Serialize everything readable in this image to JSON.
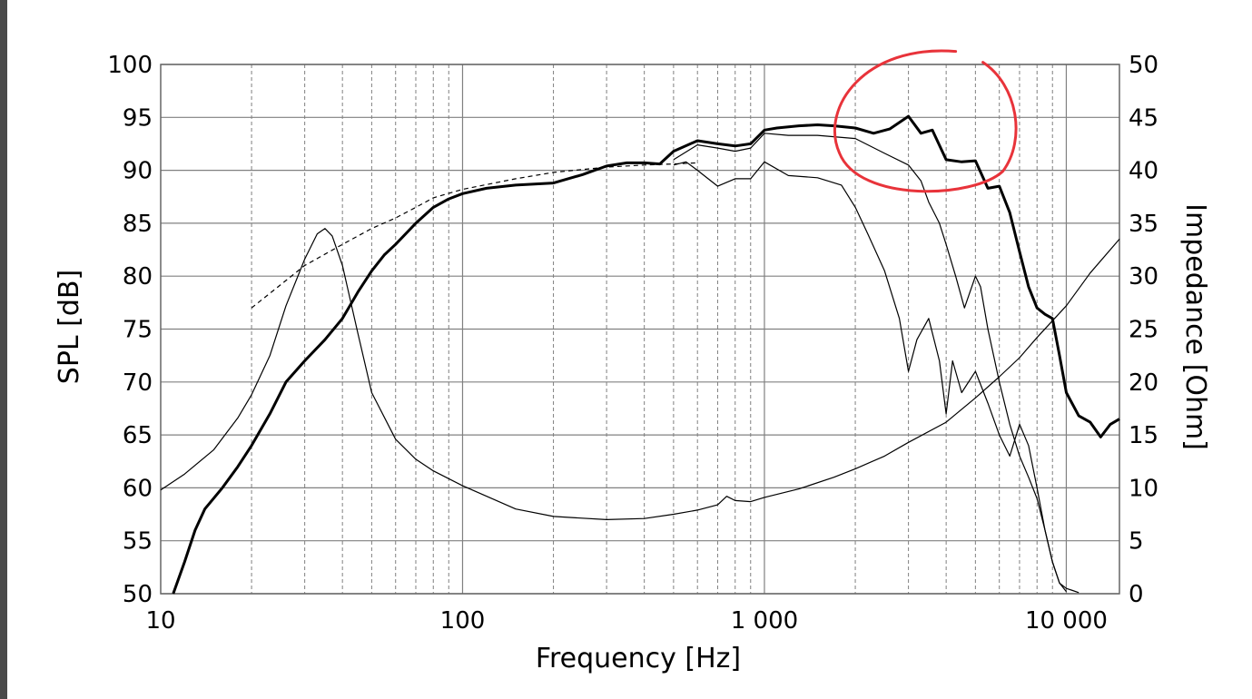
{
  "chart_data": {
    "type": "line",
    "title": "",
    "xlabel": "Frequency [Hz]",
    "ylabel": "SPL [dB]",
    "y2label": "Impedance [Ohm]",
    "xscale": "log",
    "xlim": [
      10,
      15000
    ],
    "ylim": [
      50,
      100
    ],
    "y2lim": [
      0,
      50
    ],
    "grid": true,
    "x_ticks": [
      {
        "value": 10,
        "label": "10"
      },
      {
        "value": 100,
        "label": "100"
      },
      {
        "value": 1000,
        "label": "1 000"
      },
      {
        "value": 10000,
        "label": "10 000"
      }
    ],
    "y_ticks": [
      {
        "value": 100,
        "label": "100"
      },
      {
        "value": 95,
        "label": "95"
      },
      {
        "value": 90,
        "label": "90"
      },
      {
        "value": 85,
        "label": "85"
      },
      {
        "value": 80,
        "label": "80"
      },
      {
        "value": 75,
        "label": "75"
      },
      {
        "value": 70,
        "label": "70"
      },
      {
        "value": 65,
        "label": "65"
      },
      {
        "value": 60,
        "label": "60"
      },
      {
        "value": 55,
        "label": "55"
      },
      {
        "value": 50,
        "label": "50"
      }
    ],
    "y2_ticks": [
      {
        "value": 50,
        "label": "50"
      },
      {
        "value": 45,
        "label": "45"
      },
      {
        "value": 40,
        "label": "40"
      },
      {
        "value": 35,
        "label": "35"
      },
      {
        "value": 30,
        "label": "30"
      },
      {
        "value": 25,
        "label": "25"
      },
      {
        "value": 20,
        "label": "20"
      },
      {
        "value": 15,
        "label": "15"
      },
      {
        "value": 10,
        "label": "10"
      },
      {
        "value": 5,
        "label": "5"
      },
      {
        "value": 0,
        "label": "0"
      }
    ],
    "series": [
      {
        "axis": "left",
        "stroke": "#000000",
        "width": 3,
        "dash": "",
        "points": [
          [
            11,
            50
          ],
          [
            12,
            53
          ],
          [
            13,
            56
          ],
          [
            14,
            58
          ],
          [
            16,
            60
          ],
          [
            18,
            62
          ],
          [
            20,
            64
          ],
          [
            23,
            67
          ],
          [
            26,
            70
          ],
          [
            30,
            72
          ],
          [
            35,
            74
          ],
          [
            40,
            76
          ],
          [
            45,
            78.5
          ],
          [
            50,
            80.5
          ],
          [
            55,
            82
          ],
          [
            60,
            83
          ],
          [
            70,
            85
          ],
          [
            80,
            86.5
          ],
          [
            90,
            87.3
          ],
          [
            100,
            87.8
          ],
          [
            120,
            88.3
          ],
          [
            150,
            88.6
          ],
          [
            200,
            88.8
          ],
          [
            250,
            89.6
          ],
          [
            300,
            90.4
          ],
          [
            350,
            90.7
          ],
          [
            400,
            90.7
          ],
          [
            450,
            90.6
          ],
          [
            500,
            91.8
          ],
          [
            600,
            92.8
          ],
          [
            700,
            92.5
          ],
          [
            800,
            92.3
          ],
          [
            900,
            92.5
          ],
          [
            1000,
            93.8
          ],
          [
            1100,
            94
          ],
          [
            1300,
            94.2
          ],
          [
            1500,
            94.3
          ],
          [
            1700,
            94.2
          ],
          [
            2000,
            94
          ],
          [
            2300,
            93.5
          ],
          [
            2600,
            93.9
          ],
          [
            3000,
            95.1
          ],
          [
            3300,
            93.5
          ],
          [
            3600,
            93.8
          ],
          [
            4000,
            91
          ],
          [
            4500,
            90.8
          ],
          [
            5000,
            90.9
          ],
          [
            5500,
            88.3
          ],
          [
            6000,
            88.5
          ],
          [
            6500,
            86
          ],
          [
            7000,
            82.3
          ],
          [
            7500,
            79
          ],
          [
            8000,
            77
          ],
          [
            8500,
            76.4
          ],
          [
            9000,
            76
          ],
          [
            9500,
            72.5
          ],
          [
            10000,
            69
          ],
          [
            11000,
            66.8
          ],
          [
            12000,
            66.2
          ],
          [
            13000,
            64.8
          ],
          [
            14000,
            66
          ],
          [
            15000,
            66.5
          ]
        ]
      },
      {
        "axis": "left",
        "stroke": "#000000",
        "width": 1.2,
        "dash": "",
        "points": [
          [
            500,
            91
          ],
          [
            600,
            92.4
          ],
          [
            700,
            92.1
          ],
          [
            800,
            91.8
          ],
          [
            900,
            92.1
          ],
          [
            1000,
            93.5
          ],
          [
            1200,
            93.3
          ],
          [
            1500,
            93.3
          ],
          [
            2000,
            93
          ],
          [
            2500,
            91.6
          ],
          [
            3000,
            90.5
          ],
          [
            3300,
            89
          ],
          [
            3500,
            87
          ],
          [
            3800,
            85
          ],
          [
            4000,
            83
          ],
          [
            4300,
            80
          ],
          [
            4600,
            77
          ],
          [
            5000,
            80
          ],
          [
            5200,
            79
          ],
          [
            5500,
            75
          ],
          [
            6000,
            70
          ],
          [
            6500,
            66
          ],
          [
            7000,
            63
          ],
          [
            7500,
            61
          ],
          [
            8000,
            59
          ],
          [
            8500,
            56
          ],
          [
            9000,
            53
          ],
          [
            9500,
            51
          ],
          [
            10000,
            50.5
          ],
          [
            10500,
            50.3
          ],
          [
            11000,
            50.1
          ]
        ]
      },
      {
        "axis": "left",
        "stroke": "#000000",
        "width": 1.2,
        "dash": "",
        "points": [
          [
            500,
            90.5
          ],
          [
            550,
            90.8
          ],
          [
            600,
            90
          ],
          [
            700,
            88.5
          ],
          [
            800,
            89.2
          ],
          [
            900,
            89.2
          ],
          [
            1000,
            90.8
          ],
          [
            1200,
            89.5
          ],
          [
            1500,
            89.3
          ],
          [
            1800,
            88.6
          ],
          [
            2000,
            86.5
          ],
          [
            2200,
            84
          ],
          [
            2500,
            80.5
          ],
          [
            2800,
            76
          ],
          [
            3000,
            71
          ],
          [
            3200,
            74
          ],
          [
            3500,
            76
          ],
          [
            3800,
            72
          ],
          [
            4000,
            67
          ],
          [
            4200,
            72
          ],
          [
            4500,
            69
          ],
          [
            5000,
            71
          ],
          [
            5500,
            68
          ],
          [
            6000,
            65
          ],
          [
            6500,
            63
          ],
          [
            7000,
            66
          ],
          [
            7500,
            64
          ],
          [
            8000,
            60
          ],
          [
            8500,
            56
          ],
          [
            9000,
            53
          ],
          [
            9500,
            51
          ],
          [
            10000,
            50.2
          ]
        ]
      },
      {
        "axis": "left",
        "stroke": "#000000",
        "width": 1.2,
        "dash": "5,4",
        "points": [
          [
            20,
            77
          ],
          [
            25,
            79.2
          ],
          [
            30,
            81
          ],
          [
            40,
            83
          ],
          [
            50,
            84.5
          ],
          [
            60,
            85.5
          ],
          [
            70,
            86.5
          ],
          [
            80,
            87.4
          ],
          [
            100,
            88.2
          ],
          [
            150,
            89.2
          ],
          [
            200,
            89.8
          ],
          [
            300,
            90.3
          ],
          [
            400,
            90.5
          ],
          [
            500,
            90.6
          ],
          [
            600,
            90.7
          ]
        ]
      },
      {
        "axis": "right",
        "stroke": "#000000",
        "width": 1.2,
        "dash": "",
        "points": [
          [
            10,
            9.8
          ],
          [
            12,
            11.3
          ],
          [
            15,
            13.6
          ],
          [
            18,
            16.6
          ],
          [
            20,
            18.8
          ],
          [
            23,
            22.5
          ],
          [
            26,
            27.2
          ],
          [
            30,
            31.6
          ],
          [
            33,
            34
          ],
          [
            35,
            34.5
          ],
          [
            37,
            33.8
          ],
          [
            40,
            31
          ],
          [
            45,
            24.6
          ],
          [
            50,
            19
          ],
          [
            60,
            14.6
          ],
          [
            70,
            12.7
          ],
          [
            80,
            11.6
          ],
          [
            100,
            10.2
          ],
          [
            150,
            8
          ],
          [
            200,
            7.3
          ],
          [
            300,
            7
          ],
          [
            400,
            7.1
          ],
          [
            500,
            7.5
          ],
          [
            600,
            7.9
          ],
          [
            700,
            8.4
          ],
          [
            750,
            9.2
          ],
          [
            800,
            8.8
          ],
          [
            900,
            8.7
          ],
          [
            1000,
            9.1
          ],
          [
            1300,
            9.9
          ],
          [
            1700,
            11
          ],
          [
            2000,
            11.8
          ],
          [
            2500,
            13
          ],
          [
            3000,
            14.3
          ],
          [
            4000,
            16.2
          ],
          [
            5000,
            18.5
          ],
          [
            6000,
            20.5
          ],
          [
            7000,
            22.3
          ],
          [
            8000,
            24.2
          ],
          [
            10000,
            27.2
          ],
          [
            12000,
            30.3
          ],
          [
            15000,
            33.5
          ]
        ]
      }
    ],
    "annotations": [
      {
        "type": "hand-drawn-circle",
        "color": "#e8333a",
        "center": [
          3000,
          93
        ]
      }
    ]
  }
}
